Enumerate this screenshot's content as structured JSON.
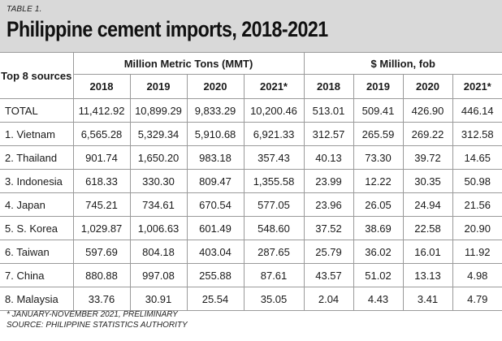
{
  "header": {
    "table_label": "TABLE 1.",
    "title": "Philippine cement imports, 2018-2021"
  },
  "table": {
    "sources_header": "Top 8 sources",
    "group_headers": [
      "Million Metric Tons (MMT)",
      "$ Million, fob"
    ],
    "year_headers": [
      "2018",
      "2019",
      "2020",
      "2021*",
      "2018",
      "2019",
      "2020",
      "2021*"
    ],
    "rows": [
      {
        "label": "TOTAL",
        "values": [
          "11,412.92",
          "10,899.29",
          "9,833.29",
          "10,200.46",
          "513.01",
          "509.41",
          "426.90",
          "446.14"
        ]
      },
      {
        "label": "1. Vietnam",
        "values": [
          "6,565.28",
          "5,329.34",
          "5,910.68",
          "6,921.33",
          "312.57",
          "265.59",
          "269.22",
          "312.58"
        ]
      },
      {
        "label": "2. Thailand",
        "values": [
          "901.74",
          "1,650.20",
          "983.18",
          "357.43",
          "40.13",
          "73.30",
          "39.72",
          "14.65"
        ]
      },
      {
        "label": "3. Indonesia",
        "values": [
          "618.33",
          "330.30",
          "809.47",
          "1,355.58",
          "23.99",
          "12.22",
          "30.35",
          "50.98"
        ]
      },
      {
        "label": "4. Japan",
        "values": [
          "745.21",
          "734.61",
          "670.54",
          "577.05",
          "23.96",
          "26.05",
          "24.94",
          "21.56"
        ]
      },
      {
        "label": "5. S. Korea",
        "values": [
          "1,029.87",
          "1,006.63",
          "601.49",
          "548.60",
          "37.52",
          "38.69",
          "22.58",
          "20.90"
        ]
      },
      {
        "label": "6. Taiwan",
        "values": [
          "597.69",
          "804.18",
          "403.04",
          "287.65",
          "25.79",
          "36.02",
          "16.01",
          "11.92"
        ]
      },
      {
        "label": "7. China",
        "values": [
          "880.88",
          "997.08",
          "255.88",
          "87.61",
          "43.57",
          "51.02",
          "13.13",
          "4.98"
        ]
      },
      {
        "label": "8. Malaysia",
        "values": [
          "33.76",
          "30.91",
          "25.54",
          "35.05",
          "2.04",
          "4.43",
          "3.41",
          "4.79"
        ]
      }
    ]
  },
  "footer": {
    "note": "* JANUARY-NOVEMBER 2021, PRELIMINARY",
    "source": "SOURCE: PHILIPPINE STATISTICS AUTHORITY"
  }
}
